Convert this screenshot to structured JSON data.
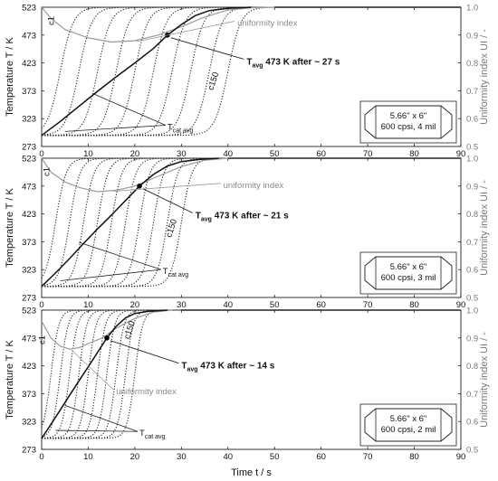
{
  "chart_data": {
    "type": "line",
    "shared_x": {
      "label": "Time  t  / s",
      "range": [
        0,
        90
      ],
      "ticks": [
        0,
        10,
        20,
        30,
        40,
        50,
        60,
        70,
        80,
        90
      ]
    },
    "left_axis": {
      "label": "Temperature T / K",
      "range": [
        273,
        523
      ],
      "ticks": [
        273,
        323,
        373,
        423,
        473,
        523
      ]
    },
    "right_axis": {
      "label": "Uniformity index UI / -",
      "range": [
        0.5,
        1.0
      ],
      "ticks": [
        "0.5",
        "0.6",
        "0.7",
        "0.8",
        "0.9",
        "1.0"
      ]
    },
    "colors": {
      "temperature": "#111111",
      "uniformity": "#9a9a9a"
    },
    "panels": [
      {
        "id": "a",
        "inset": {
          "size": "5.66\" x 6\"",
          "spec": "600 cpsi, 4 mil"
        },
        "annotations": {
          "c1": "c1",
          "c150": "c150",
          "ui": "uniformity index",
          "tcat_main": "T",
          "tcat_sub": "cat avg",
          "tavg_main": "T",
          "tavg_sub": "avg",
          "tavg_rest": " 473 K after ~ 27 s"
        },
        "marker": {
          "t": 27,
          "T": 473
        },
        "tavg": {
          "x": [
            0,
            4,
            8,
            12,
            16,
            20,
            24,
            27,
            30,
            33,
            36,
            40,
            45
          ],
          "y": [
            293,
            318,
            345,
            372,
            398,
            423,
            449,
            473,
            492,
            508,
            517,
            521,
            523
          ]
        },
        "ui": {
          "x": [
            0,
            2,
            5,
            10,
            15,
            20,
            25,
            30,
            35,
            40,
            45,
            50
          ],
          "y": [
            1.0,
            0.96,
            0.92,
            0.89,
            0.875,
            0.88,
            0.9,
            0.93,
            0.965,
            0.99,
            0.998,
            1.0
          ]
        },
        "cell_midpoints_s": [
          4,
          8,
          12,
          16,
          20,
          24,
          28,
          32,
          36,
          40
        ],
        "transition_width_s": 5
      },
      {
        "id": "b",
        "inset": {
          "size": "5.66\" x 6\"",
          "spec": "600 cpsi, 3 mil"
        },
        "annotations": {
          "c1": "c1",
          "c150": "c150",
          "ui": "uniformity index",
          "tcat_main": "T",
          "tcat_sub": "cat avg",
          "tavg_main": "T",
          "tavg_sub": "avg",
          "tavg_rest": " 473 K after ~ 21 s"
        },
        "marker": {
          "t": 21,
          "T": 473
        },
        "tavg": {
          "x": [
            0,
            3,
            6,
            9,
            12,
            15,
            18,
            21,
            24,
            27,
            30,
            34,
            38
          ],
          "y": [
            293,
            317,
            343,
            370,
            396,
            421,
            447,
            473,
            494,
            509,
            517,
            521,
            523
          ]
        },
        "ui": {
          "x": [
            0,
            2,
            5,
            8,
            12,
            16,
            20,
            25,
            30,
            35,
            40
          ],
          "y": [
            1.0,
            0.95,
            0.915,
            0.895,
            0.88,
            0.885,
            0.9,
            0.935,
            0.97,
            0.993,
            1.0
          ]
        },
        "cell_midpoints_s": [
          3,
          6,
          9,
          12,
          15,
          18,
          21,
          24,
          27,
          30
        ],
        "transition_width_s": 4
      },
      {
        "id": "c",
        "inset": {
          "size": "5.66\" x 6\"",
          "spec": "600 cpsi, 2 mil"
        },
        "annotations": {
          "c1": "c1",
          "c150": "c150",
          "ui": "uniformity index",
          "tcat_main": "T",
          "tcat_sub": "cat avg",
          "tavg_main": "T",
          "tavg_sub": "avg",
          "tavg_rest": " 473 K after ~ 14 s"
        },
        "marker": {
          "t": 14,
          "T": 473
        },
        "tavg": {
          "x": [
            0,
            2,
            4,
            6,
            8,
            10,
            12,
            14,
            16,
            18,
            20,
            23,
            27
          ],
          "y": [
            293,
            318,
            344,
            370,
            396,
            421,
            447,
            473,
            494,
            509,
            517,
            521,
            523
          ]
        },
        "ui": {
          "x": [
            0,
            2,
            4,
            6,
            8,
            10,
            13,
            16,
            20,
            24,
            28
          ],
          "y": [
            0.96,
            0.9,
            0.87,
            0.86,
            0.865,
            0.88,
            0.9,
            0.935,
            0.97,
            0.993,
            1.0
          ]
        },
        "cell_midpoints_s": [
          2,
          4,
          6,
          8,
          10,
          12,
          14,
          16,
          18,
          20
        ],
        "transition_width_s": 3
      }
    ]
  }
}
